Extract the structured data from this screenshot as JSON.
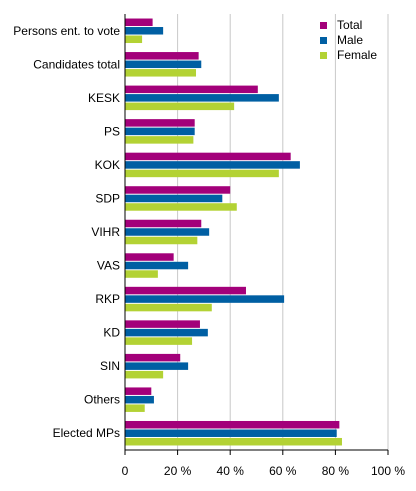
{
  "chart_data": {
    "type": "bar",
    "orientation": "horizontal",
    "categories": [
      "Persons ent. to vote",
      "Candidates total",
      "KESK",
      "PS",
      "KOK",
      "SDP",
      "VIHR",
      "VAS",
      "RKP",
      "KD",
      "SIN",
      "Others",
      "Elected MPs"
    ],
    "series": [
      {
        "name": "Total",
        "color": "#a3007a",
        "values": [
          10.5,
          28,
          50.5,
          26.5,
          63,
          40,
          29,
          18.5,
          46,
          28.5,
          21,
          10,
          81.5
        ]
      },
      {
        "name": "Male",
        "color": "#005fa3",
        "values": [
          14.5,
          29,
          58.5,
          26.5,
          66.5,
          37,
          32,
          24,
          60.5,
          31.5,
          24,
          11,
          80.5
        ]
      },
      {
        "name": "Female",
        "color": "#b3d234",
        "values": [
          6.5,
          27,
          41.5,
          26,
          58.5,
          42.5,
          27.5,
          12.5,
          33,
          25.5,
          14.5,
          7.5,
          82.5
        ]
      }
    ],
    "xlim": [
      0,
      100
    ],
    "xticks": [
      "0",
      "20 %",
      "40 %",
      "60 %",
      "80 %",
      "100 %"
    ],
    "grid": true,
    "legend": "top-right"
  }
}
